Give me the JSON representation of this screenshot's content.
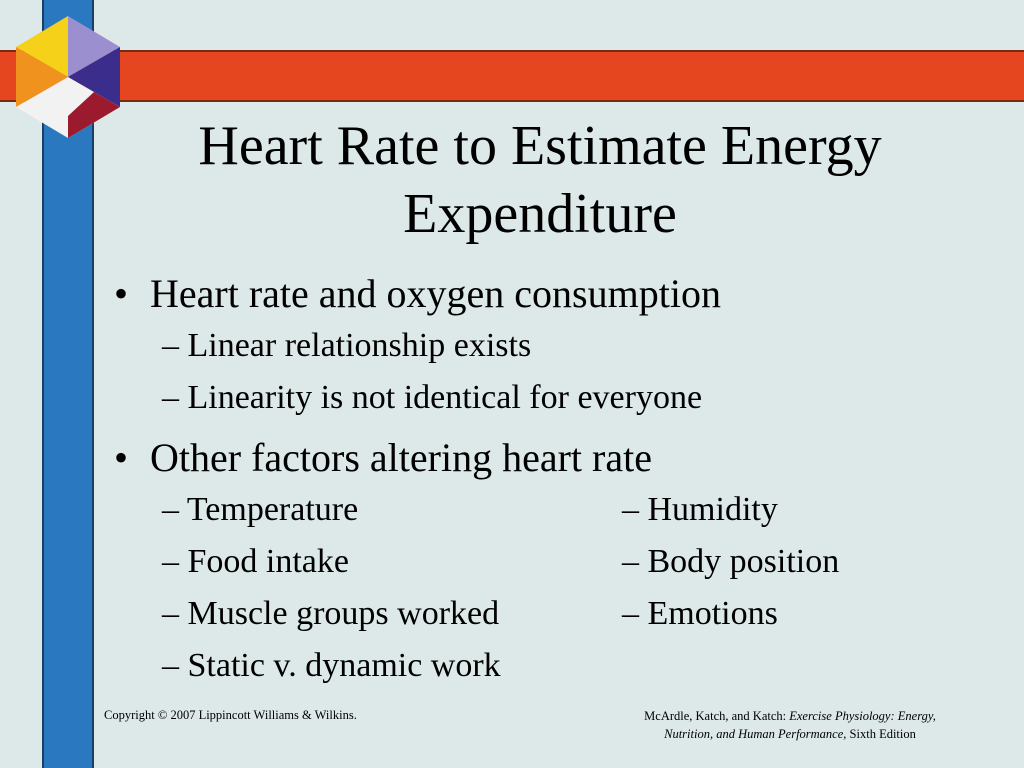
{
  "slide": {
    "title_line1": "Heart Rate to Estimate Energy",
    "title_line2": "Expenditure",
    "bullet_glyph": "•",
    "bullet1": "Heart rate and oxygen consumption",
    "sub1": [
      "– Linear relationship exists",
      "– Linearity is not identical for everyone"
    ],
    "bullet2": "Other factors altering heart rate",
    "factors_left": [
      "– Temperature",
      "– Food intake",
      "– Muscle groups worked",
      "– Static v. dynamic work"
    ],
    "factors_right": [
      "– Humidity",
      "– Body position",
      "– Emotions"
    ]
  },
  "footer": {
    "copyright": "Copyright © 2007 Lippincott Williams & Wilkins.",
    "authors": "McArdle, Katch, and Katch: ",
    "book_title_part1": "Exercise Physiology: Energy,",
    "book_title_part2": "Nutrition, and Human Performance,",
    "edition": " Sixth Edition"
  },
  "colors": {
    "background": "#dde8e8",
    "vertical_bar": "#2a78bf",
    "horizontal_bar": "#e5461f",
    "logo_yellow": "#f5d11a",
    "logo_orange": "#f0921e",
    "logo_lavender": "#9b8fcf",
    "logo_navy": "#3a2d8c",
    "logo_red": "#9b1a2e",
    "logo_white": "#f2f2f2"
  }
}
